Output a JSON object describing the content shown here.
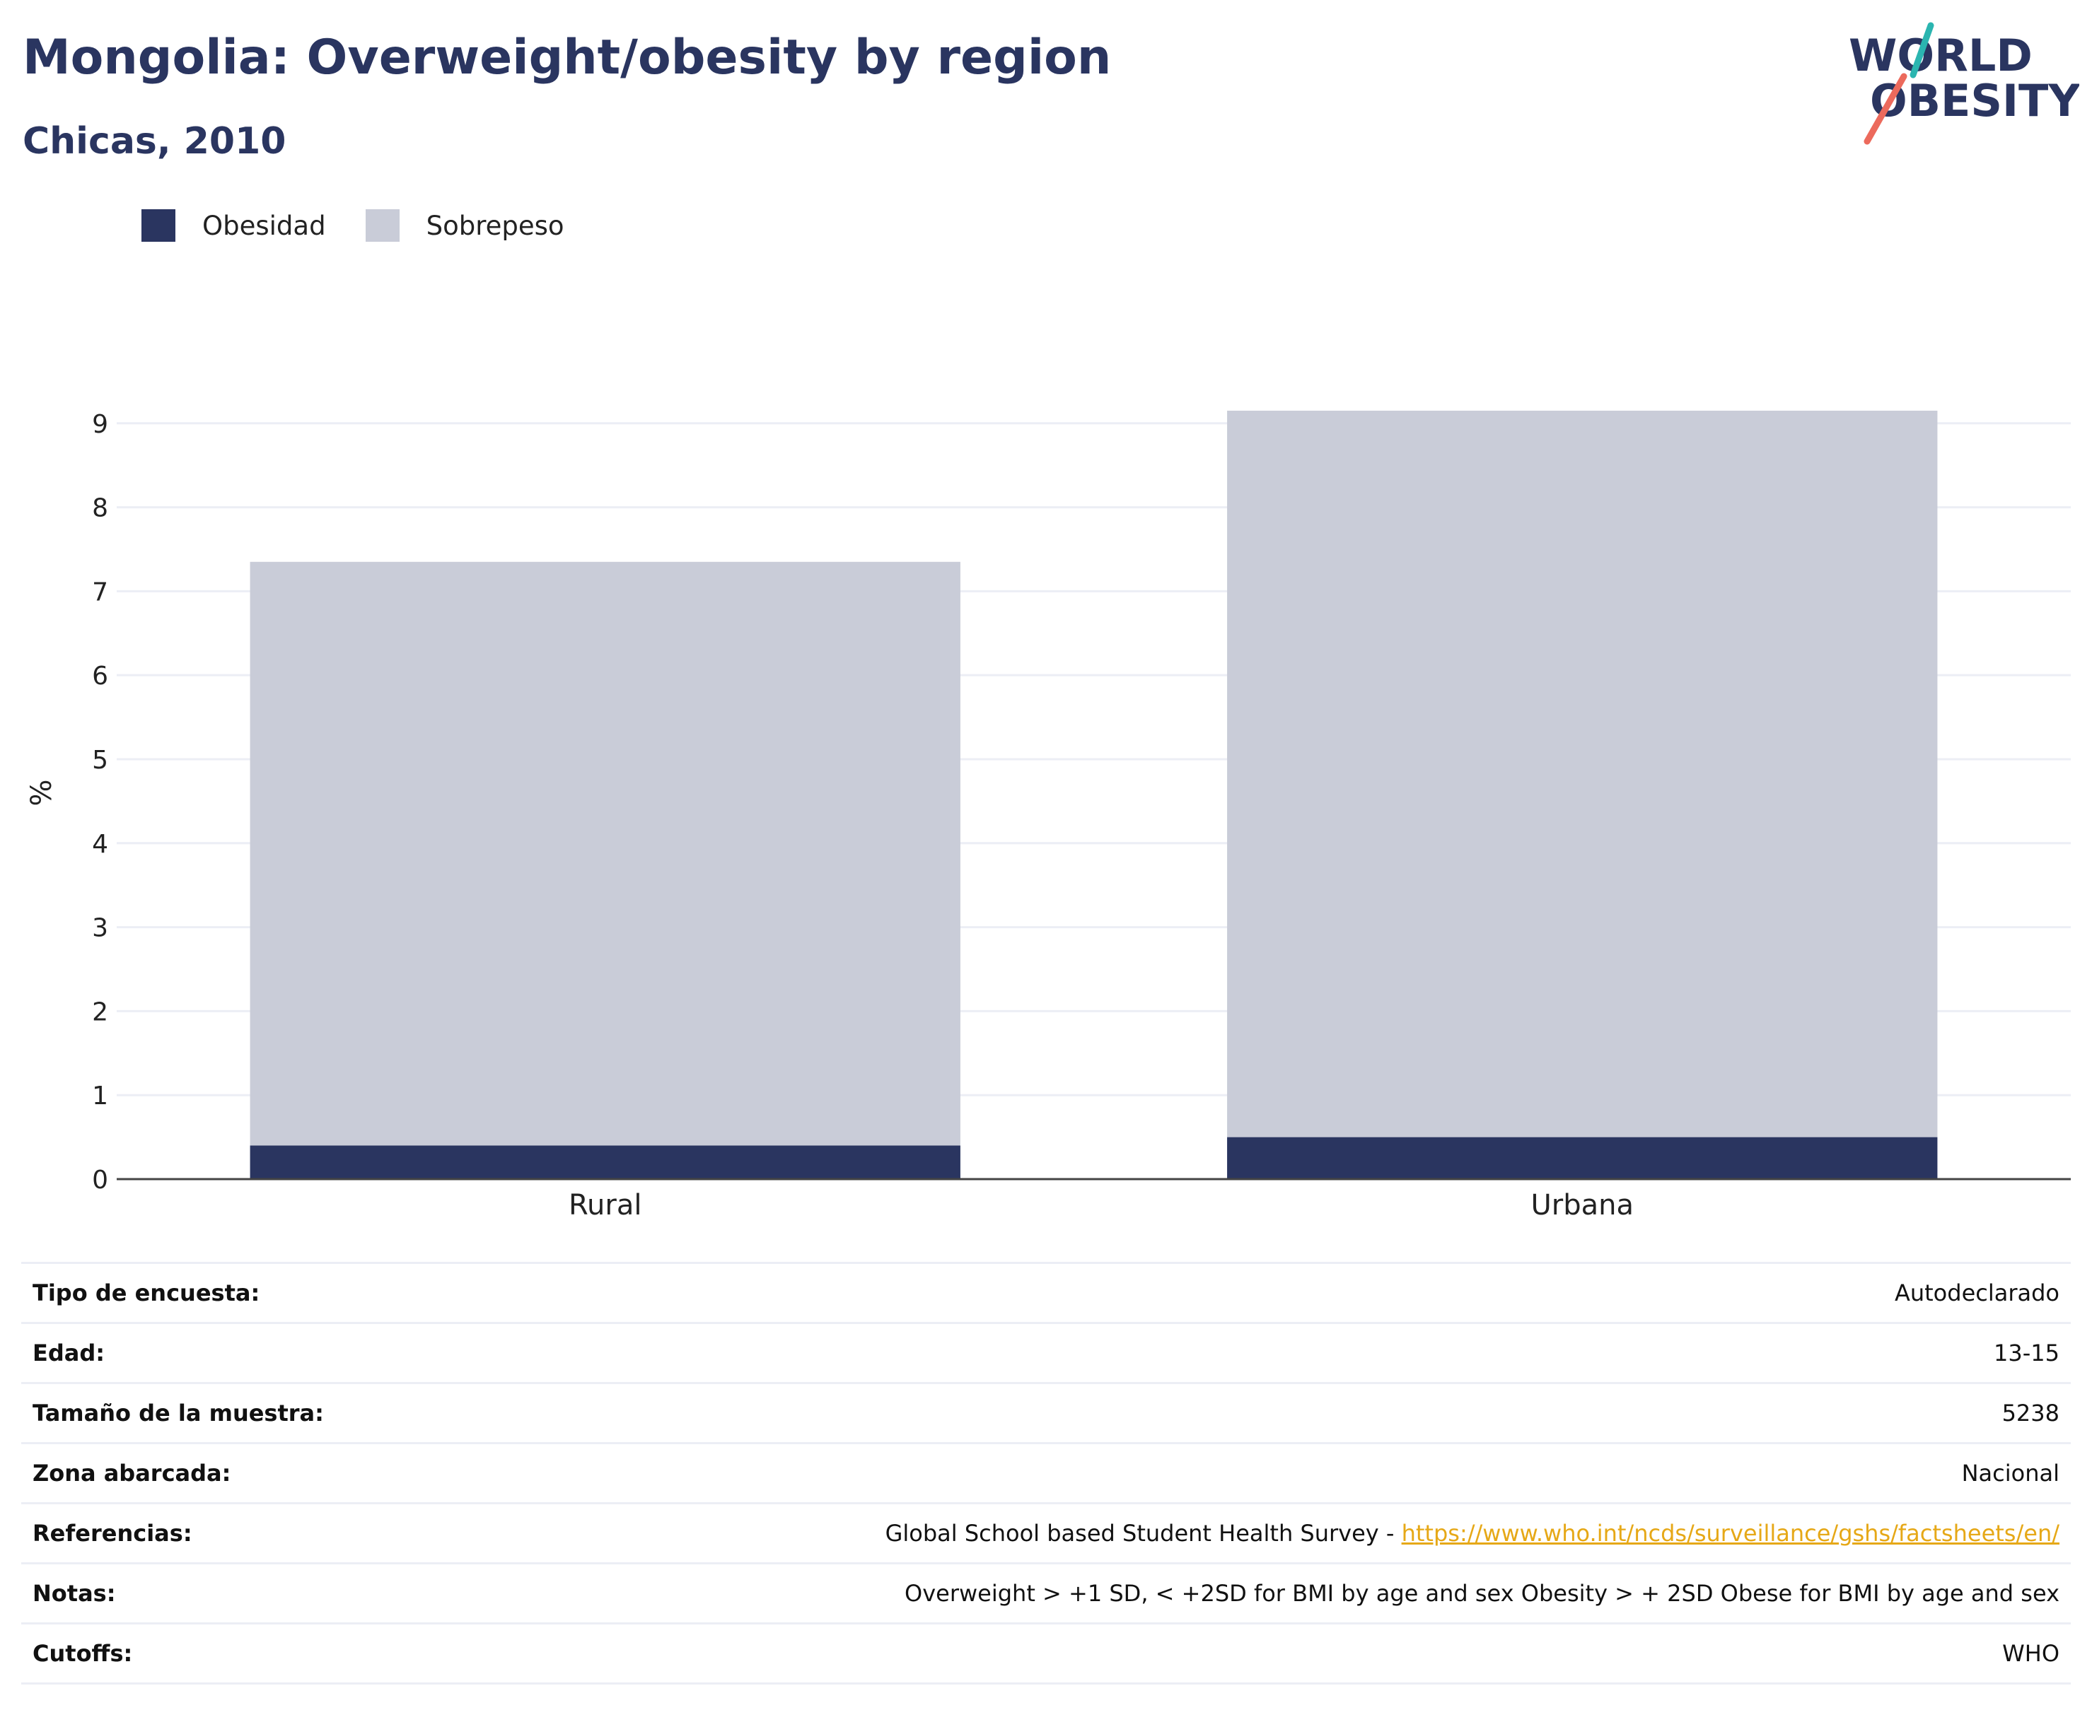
{
  "header": {
    "title": "Mongolia: Overweight/obesity by region",
    "subtitle": "Chicas, 2010"
  },
  "logo": {
    "line1": "WORLD",
    "line2": "OBESITY",
    "colors": {
      "text": "#2a3560",
      "teal": "#2bb5b0",
      "coral": "#ec6a5c"
    }
  },
  "chart_data": {
    "type": "bar",
    "stacked": true,
    "categories": [
      "Rural",
      "Urbana"
    ],
    "series": [
      {
        "name": "Obesidad",
        "color": "#2a3560",
        "values": [
          0.4,
          0.5
        ]
      },
      {
        "name": "Sobrepeso",
        "color": "#c9ccd8",
        "values": [
          6.95,
          8.65
        ]
      }
    ],
    "ylabel": "%",
    "ylim": [
      0,
      9
    ],
    "yticks": [
      0,
      1,
      2,
      3,
      4,
      5,
      6,
      7,
      8,
      9
    ],
    "grid": true,
    "legend_position": "top-left"
  },
  "info": {
    "rows": [
      {
        "label": "Tipo de encuesta:",
        "value": "Autodeclarado"
      },
      {
        "label": "Edad:",
        "value": "13-15"
      },
      {
        "label": "Tamaño de la muestra:",
        "value": "5238"
      },
      {
        "label": "Zona abarcada:",
        "value": "Nacional"
      },
      {
        "label": "Referencias:",
        "value": "Global School based Student Health Survey - ",
        "link": "https://www.who.int/ncds/surveillance/gshs/factsheets/en/"
      },
      {
        "label": "Notas:",
        "value": "Overweight > +1 SD, < +2SD for BMI by age and sex Obesity > + 2SD Obese for BMI by age and sex"
      },
      {
        "label": "Cutoffs:",
        "value": "WHO"
      }
    ]
  }
}
